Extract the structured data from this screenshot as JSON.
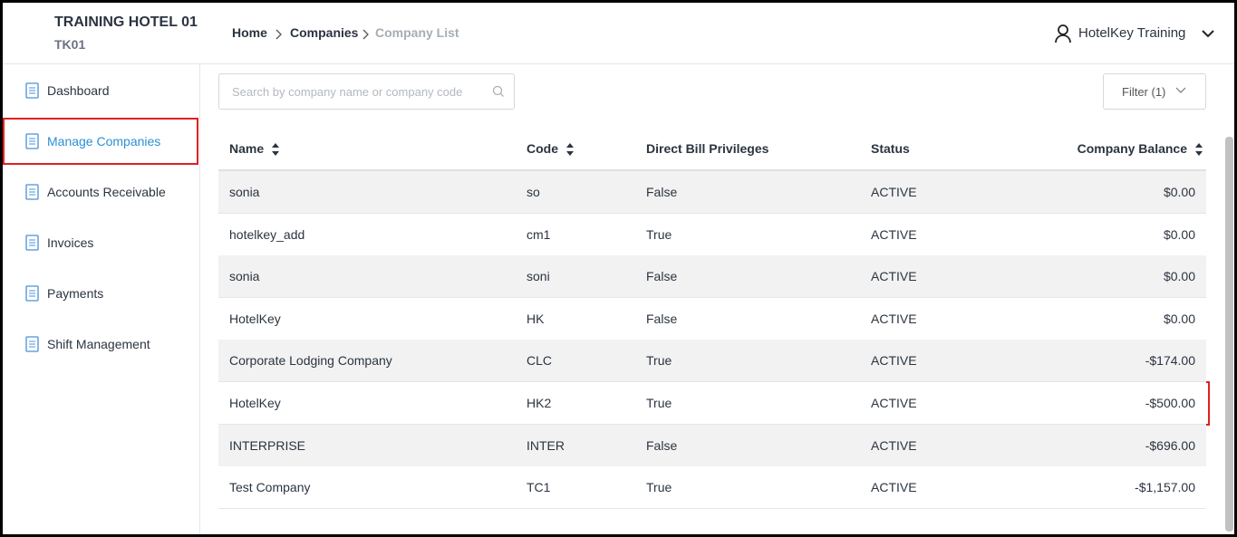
{
  "header": {
    "hotel_name": "TRAINING HOTEL 01",
    "hotel_code": "TK01",
    "breadcrumb": [
      "Home",
      "Companies",
      "Company List"
    ],
    "user": "HotelKey Training"
  },
  "sidebar": {
    "items": [
      "Dashboard",
      "Manage Companies",
      "Accounts Receivable",
      "Invoices",
      "Payments",
      "Shift Management"
    ]
  },
  "toolbar": {
    "search_placeholder": "Search by company name or company code",
    "filter": "Filter (1)"
  },
  "table": {
    "columns": [
      "Name",
      "Code",
      "Direct Bill Privileges",
      "Status",
      "Company Balance"
    ],
    "rows": [
      [
        "sonia",
        "so",
        "False",
        "ACTIVE",
        "$0.00"
      ],
      [
        "hotelkey_add",
        "cm1",
        "True",
        "ACTIVE",
        "$0.00"
      ],
      [
        "sonia",
        "soni",
        "False",
        "ACTIVE",
        "$0.00"
      ],
      [
        "HotelKey",
        "HK",
        "False",
        "ACTIVE",
        "$0.00"
      ],
      [
        "Corporate Lodging Company",
        "CLC",
        "True",
        "ACTIVE",
        "-$174.00"
      ],
      [
        "HotelKey",
        "HK2",
        "True",
        "ACTIVE",
        "-$500.00"
      ],
      [
        "INTERPRISE",
        "INTER",
        "False",
        "ACTIVE",
        "-$696.00"
      ],
      [
        "Test Company",
        "TC1",
        "True",
        "ACTIVE",
        "-$1,157.00"
      ]
    ]
  }
}
